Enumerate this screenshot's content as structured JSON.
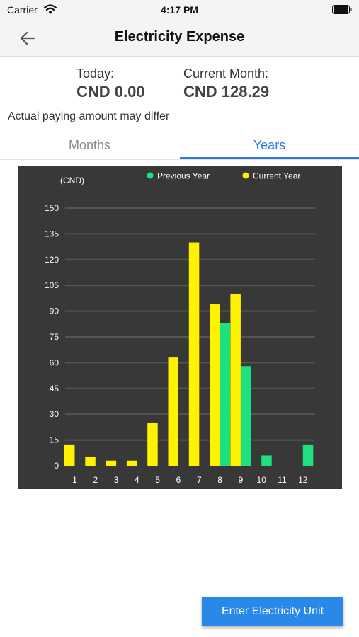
{
  "status_bar": {
    "carrier": "Carrier",
    "time": "4:17 PM",
    "wifi_icon": "wifi-icon",
    "battery_icon": "battery-icon"
  },
  "nav": {
    "back_icon": "back-arrow-icon",
    "title": "Electricity Expense"
  },
  "summary": {
    "today_label": "Today:",
    "today_value": "CND 0.00",
    "month_label": "Current Month:",
    "month_value": "CND 128.29",
    "disclaimer": "Actual paying amount may differ"
  },
  "tabs": [
    {
      "label": "Months",
      "active": false
    },
    {
      "label": "Years",
      "active": true
    }
  ],
  "colors": {
    "accent": "#2a7be0",
    "chart_bg": "#383838",
    "previous_year": "#1ee07f",
    "current_year": "#fff200"
  },
  "chart_data": {
    "type": "bar",
    "unit_label": "(CND)",
    "categories": [
      "1",
      "2",
      "3",
      "4",
      "5",
      "6",
      "7",
      "8",
      "9",
      "10",
      "11",
      "12"
    ],
    "series": [
      {
        "name": "Previous Year",
        "color": "#1ee07f",
        "values": [
          0,
          0,
          0,
          0,
          0,
          0,
          0,
          83,
          58,
          6,
          0,
          12
        ]
      },
      {
        "name": "Current Year",
        "color": "#fff200",
        "values": [
          12,
          5,
          3,
          3,
          25,
          63,
          130,
          94,
          100,
          0,
          0,
          0
        ]
      }
    ],
    "yticks": [
      0,
      15,
      30,
      45,
      60,
      75,
      90,
      105,
      120,
      135,
      150
    ],
    "ylim": [
      0,
      150
    ],
    "grid": true,
    "legend_position": "top"
  },
  "footer": {
    "enter_button_label": "Enter Electricity Unit"
  }
}
